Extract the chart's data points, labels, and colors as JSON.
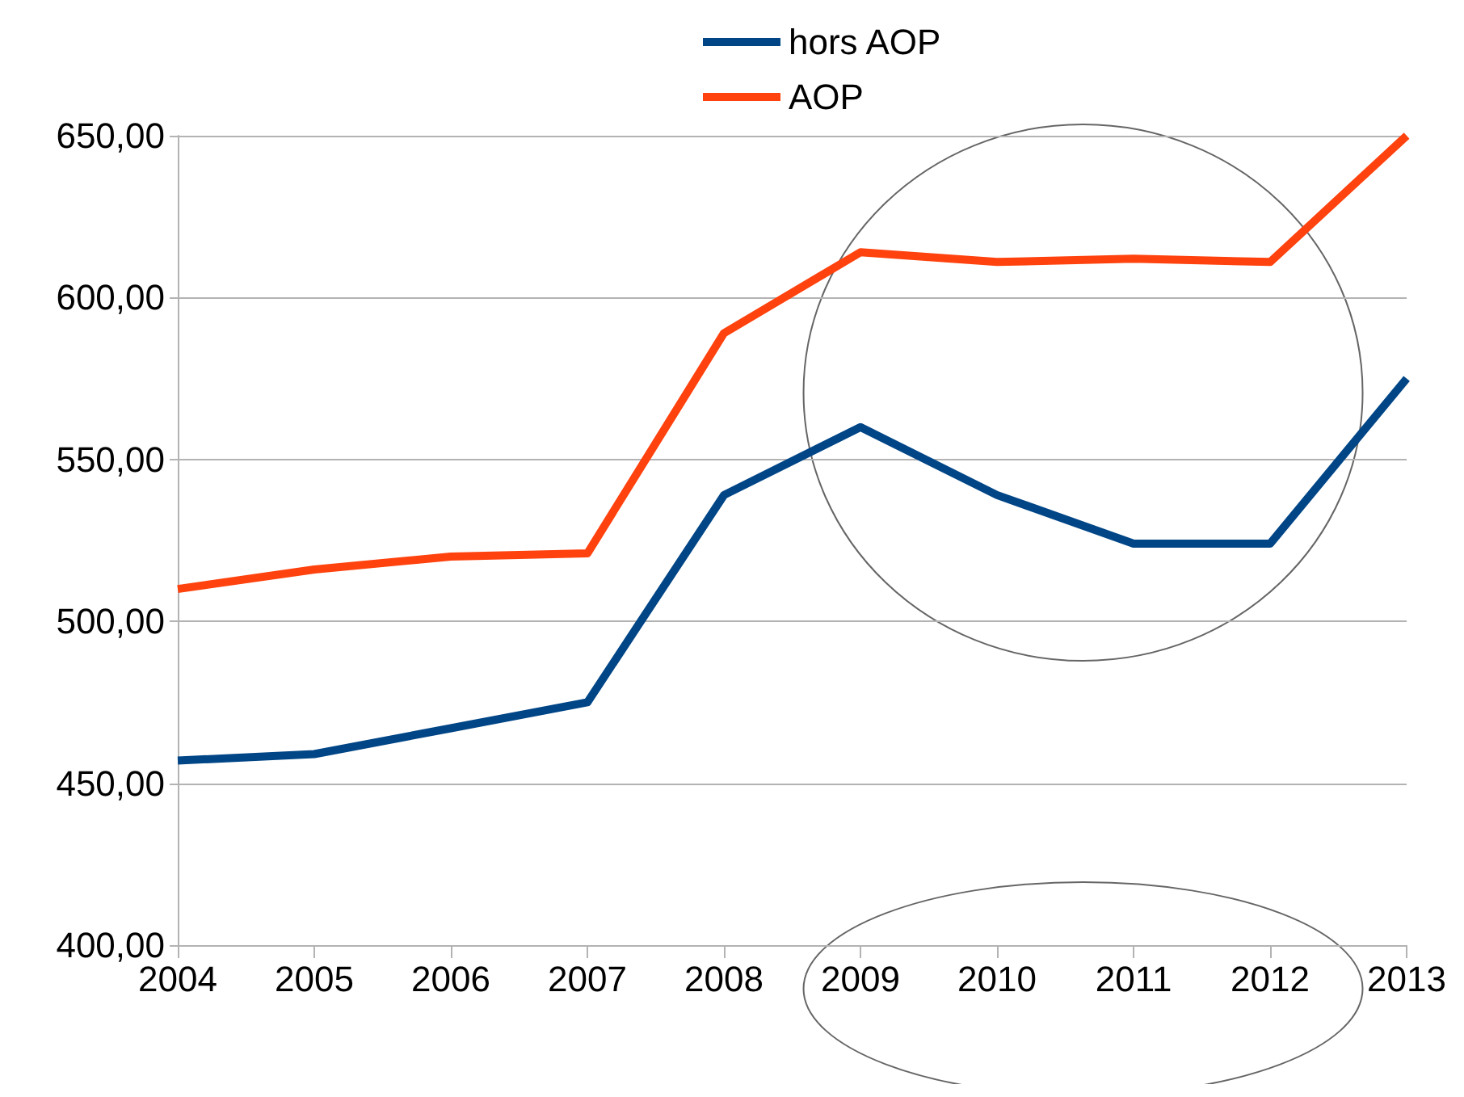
{
  "chart_data": {
    "type": "line",
    "categories": [
      "2004",
      "2005",
      "2006",
      "2007",
      "2008",
      "2009",
      "2010",
      "2011",
      "2012",
      "2013"
    ],
    "series": [
      {
        "name": "hors AOP",
        "color": "#004586",
        "values": [
          457,
          459,
          467,
          475,
          539,
          560,
          539,
          524,
          524,
          575
        ]
      },
      {
        "name": "AOP",
        "color": "#ff420e",
        "values": [
          510,
          516,
          520,
          521,
          589,
          614,
          611,
          612,
          611,
          650
        ]
      }
    ],
    "ylim": [
      400,
      650
    ],
    "yticks": [
      {
        "value": 400,
        "label": "400,00"
      },
      {
        "value": 450,
        "label": "450,00"
      },
      {
        "value": 500,
        "label": "500,00"
      },
      {
        "value": 550,
        "label": "550,00"
      },
      {
        "value": 600,
        "label": "600,00"
      },
      {
        "value": 650,
        "label": "650,00"
      }
    ],
    "grid": "y",
    "legend": "top",
    "marker": "none",
    "line_style": "solid"
  }
}
